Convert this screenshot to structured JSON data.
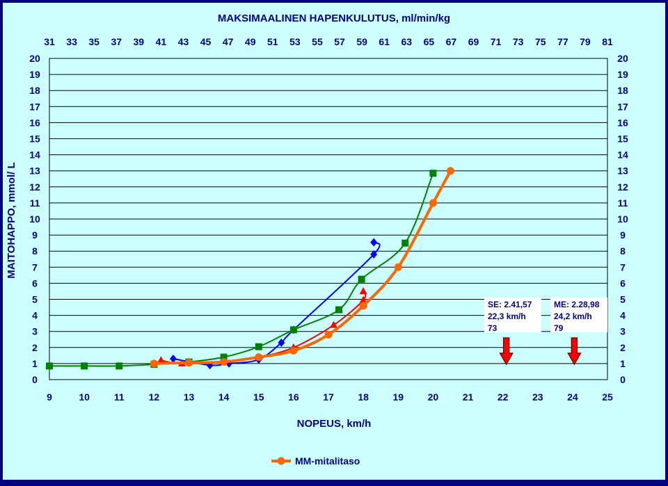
{
  "chart_data": {
    "type": "line",
    "title": "MAKSIMAALINEN HAPENKULUTUS, ml/min/kg",
    "xlabel": "NOPEUS, km/h",
    "ylabel": "MAITOHAPPO, mmol/ L",
    "xlim": [
      9,
      25
    ],
    "ylim": [
      0,
      20
    ],
    "x_ticks": [
      9,
      10,
      11,
      12,
      13,
      14,
      15,
      16,
      17,
      18,
      19,
      20,
      21,
      22,
      23,
      24,
      25
    ],
    "y_ticks": [
      0,
      1,
      2,
      3,
      4,
      5,
      6,
      7,
      8,
      9,
      10,
      11,
      12,
      13,
      14,
      15,
      16,
      17,
      18,
      19,
      20
    ],
    "top_axis_ticks": [
      "31",
      "33",
      "35",
      "37",
      "39",
      "41",
      "43",
      "45",
      "47",
      "49",
      "51",
      "53",
      "55",
      "57",
      "59",
      "61",
      "63",
      "65",
      "67",
      "69",
      "71",
      "73",
      "75",
      "77",
      "79",
      "81"
    ],
    "grid": true,
    "legend_position": "bottom",
    "colors": {
      "background": "#000080",
      "plot_area": "#ccffff",
      "title_text": "#000080",
      "axis_text": "#ffffff"
    },
    "series": [
      {
        "name": "MM-mitalitaso",
        "color": "#ff6600",
        "marker": "circle",
        "width": 4,
        "points": [
          [
            12,
            1.0
          ],
          [
            13,
            1.05
          ],
          [
            14,
            1.1
          ],
          [
            15,
            1.4
          ],
          [
            16,
            1.8
          ],
          [
            17,
            2.8
          ],
          [
            18,
            4.6
          ],
          [
            19,
            7.0
          ],
          [
            20,
            11.0
          ],
          [
            20.5,
            13.0
          ]
        ]
      },
      {
        "color": "#008000",
        "marker": "square",
        "width": 2,
        "points": [
          [
            9,
            0.85
          ],
          [
            10,
            0.85
          ],
          [
            11,
            0.85
          ],
          [
            12,
            0.95
          ],
          [
            13,
            1.1
          ],
          [
            14,
            1.4
          ],
          [
            15,
            2.05
          ],
          [
            16,
            3.1
          ],
          [
            17.3,
            4.35
          ],
          [
            17.95,
            6.25
          ],
          [
            19.2,
            8.5
          ],
          [
            20,
            12.85
          ]
        ]
      },
      {
        "color": "#ff0000",
        "marker": "triangle",
        "width": 2,
        "points": [
          [
            12.2,
            1.2
          ],
          [
            12.8,
            1.0
          ],
          [
            14,
            1.1
          ],
          [
            15,
            1.4
          ],
          [
            16,
            2.0
          ],
          [
            17.15,
            3.4
          ],
          [
            18,
            4.95
          ],
          [
            18,
            5.5
          ]
        ]
      },
      {
        "color": "#0000ff",
        "marker": "diamond",
        "width": 2,
        "points": [
          [
            12.55,
            1.3
          ],
          [
            13.6,
            0.9
          ],
          [
            14.15,
            1.0
          ],
          [
            15,
            1.25
          ],
          [
            15.65,
            2.3
          ],
          [
            16,
            3.1
          ],
          [
            18.3,
            7.8
          ],
          [
            18.3,
            8.55
          ]
        ]
      }
    ],
    "annotations": [
      {
        "lines": [
          "SE: 2.41,57",
          "22,3 km/h",
          "73"
        ],
        "arrow_x": 22.1
      },
      {
        "lines": [
          "ME: 2.28,98",
          "24,2 km/h",
          "79"
        ],
        "arrow_x": 24.05
      }
    ]
  }
}
